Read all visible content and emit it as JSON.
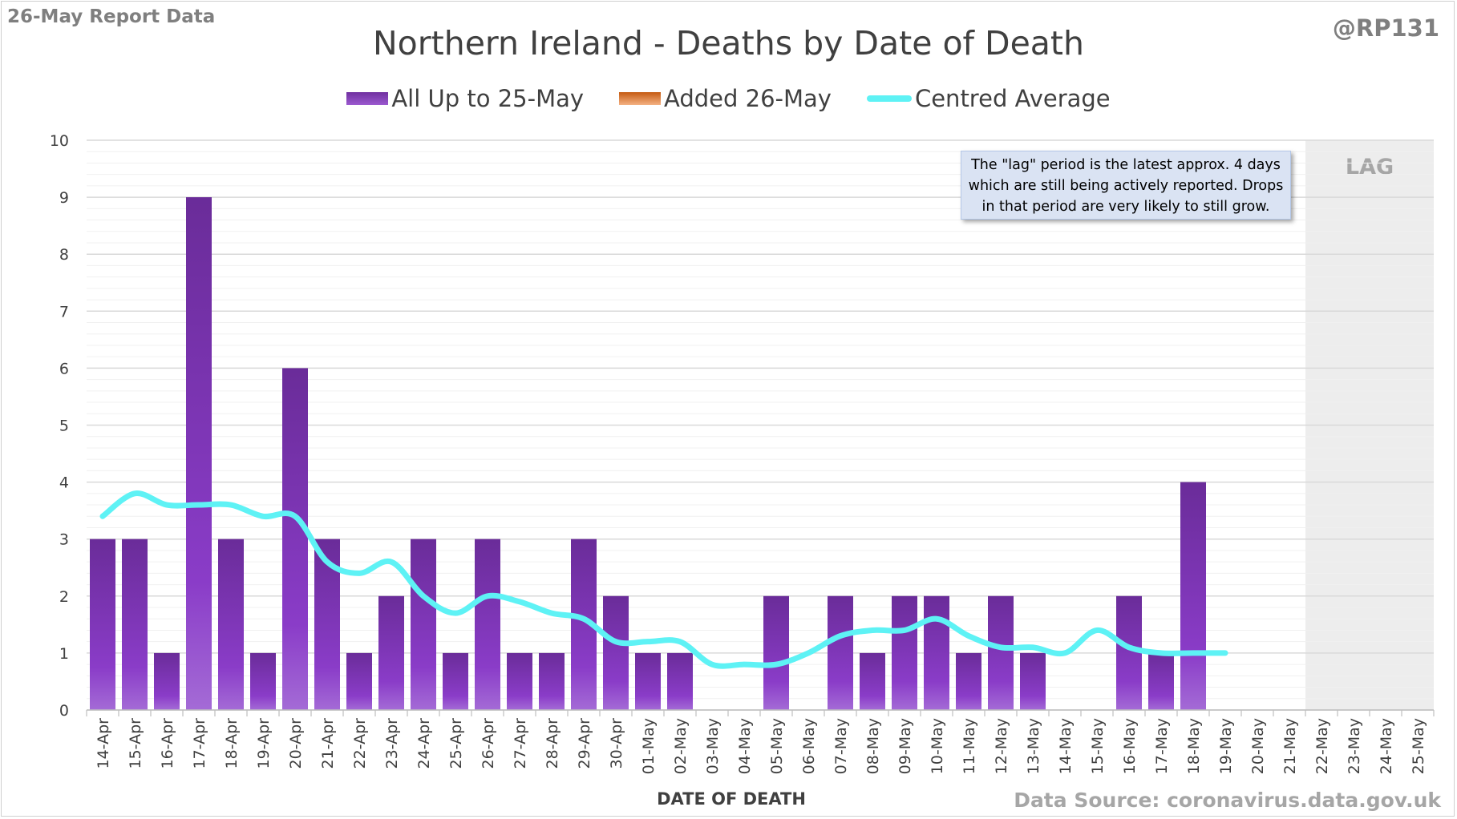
{
  "header": {
    "report_label": "26-May Report Data",
    "handle": "@RP131",
    "source": "Data Source: coronavirus.data.gov.uk"
  },
  "note": {
    "lines": [
      "The \"lag\" period is the latest approx. 4 days",
      "which are still being actively reported.  Drops",
      "in that period are very likely to still grow."
    ]
  },
  "chart_data": {
    "type": "bar",
    "title": "Northern Ireland - Deaths by Date of Death",
    "xlabel": "DATE OF DEATH",
    "ylabel": "",
    "ylim": [
      0,
      10
    ],
    "yticks": [
      0,
      1,
      2,
      3,
      4,
      5,
      6,
      7,
      8,
      9,
      10
    ],
    "grid": true,
    "legend_position": "top-center",
    "lag_label": "LAG",
    "lag_categories": [
      "22-May",
      "23-May",
      "24-May",
      "25-May"
    ],
    "categories": [
      "14-Apr",
      "15-Apr",
      "16-Apr",
      "17-Apr",
      "18-Apr",
      "19-Apr",
      "20-Apr",
      "21-Apr",
      "22-Apr",
      "23-Apr",
      "24-Apr",
      "25-Apr",
      "26-Apr",
      "27-Apr",
      "28-Apr",
      "29-Apr",
      "30-Apr",
      "01-May",
      "02-May",
      "03-May",
      "04-May",
      "05-May",
      "06-May",
      "07-May",
      "08-May",
      "09-May",
      "10-May",
      "11-May",
      "12-May",
      "13-May",
      "14-May",
      "15-May",
      "16-May",
      "17-May",
      "18-May",
      "19-May",
      "20-May",
      "21-May",
      "22-May",
      "23-May",
      "24-May",
      "25-May"
    ],
    "series": [
      {
        "name": "All Up to 25-May",
        "type": "bar",
        "color": "#7030a0",
        "values": [
          3,
          3,
          1,
          9,
          3,
          1,
          6,
          3,
          1,
          2,
          3,
          1,
          3,
          1,
          1,
          3,
          2,
          1,
          1,
          0,
          0,
          2,
          0,
          2,
          1,
          2,
          2,
          1,
          2,
          1,
          0,
          0,
          2,
          1,
          4,
          0,
          0,
          0,
          0,
          0,
          0,
          0
        ]
      },
      {
        "name": "Added 26-May",
        "type": "bar",
        "color": "#ed7d31",
        "values": [
          0,
          0,
          0,
          0,
          0,
          0,
          0,
          0,
          0,
          0,
          0,
          0,
          0,
          0,
          0,
          0,
          0,
          0,
          0,
          0,
          0,
          0,
          0,
          0,
          0,
          0,
          0,
          0,
          0,
          0,
          0,
          0,
          0,
          0,
          0,
          0,
          0,
          0,
          0,
          0,
          0,
          0
        ]
      },
      {
        "name": "Centred Average",
        "type": "line",
        "color": "#5ef2f5",
        "values": [
          3.4,
          3.8,
          3.6,
          3.6,
          3.6,
          3.4,
          3.4,
          2.6,
          2.4,
          2.6,
          2.0,
          1.7,
          2.0,
          1.9,
          1.7,
          1.6,
          1.2,
          1.2,
          1.2,
          0.8,
          0.8,
          0.8,
          1.0,
          1.3,
          1.4,
          1.4,
          1.6,
          1.3,
          1.1,
          1.1,
          1.0,
          1.4,
          1.1,
          1.0,
          1.0,
          1.0,
          null,
          null,
          null,
          null,
          null,
          null
        ]
      }
    ]
  }
}
